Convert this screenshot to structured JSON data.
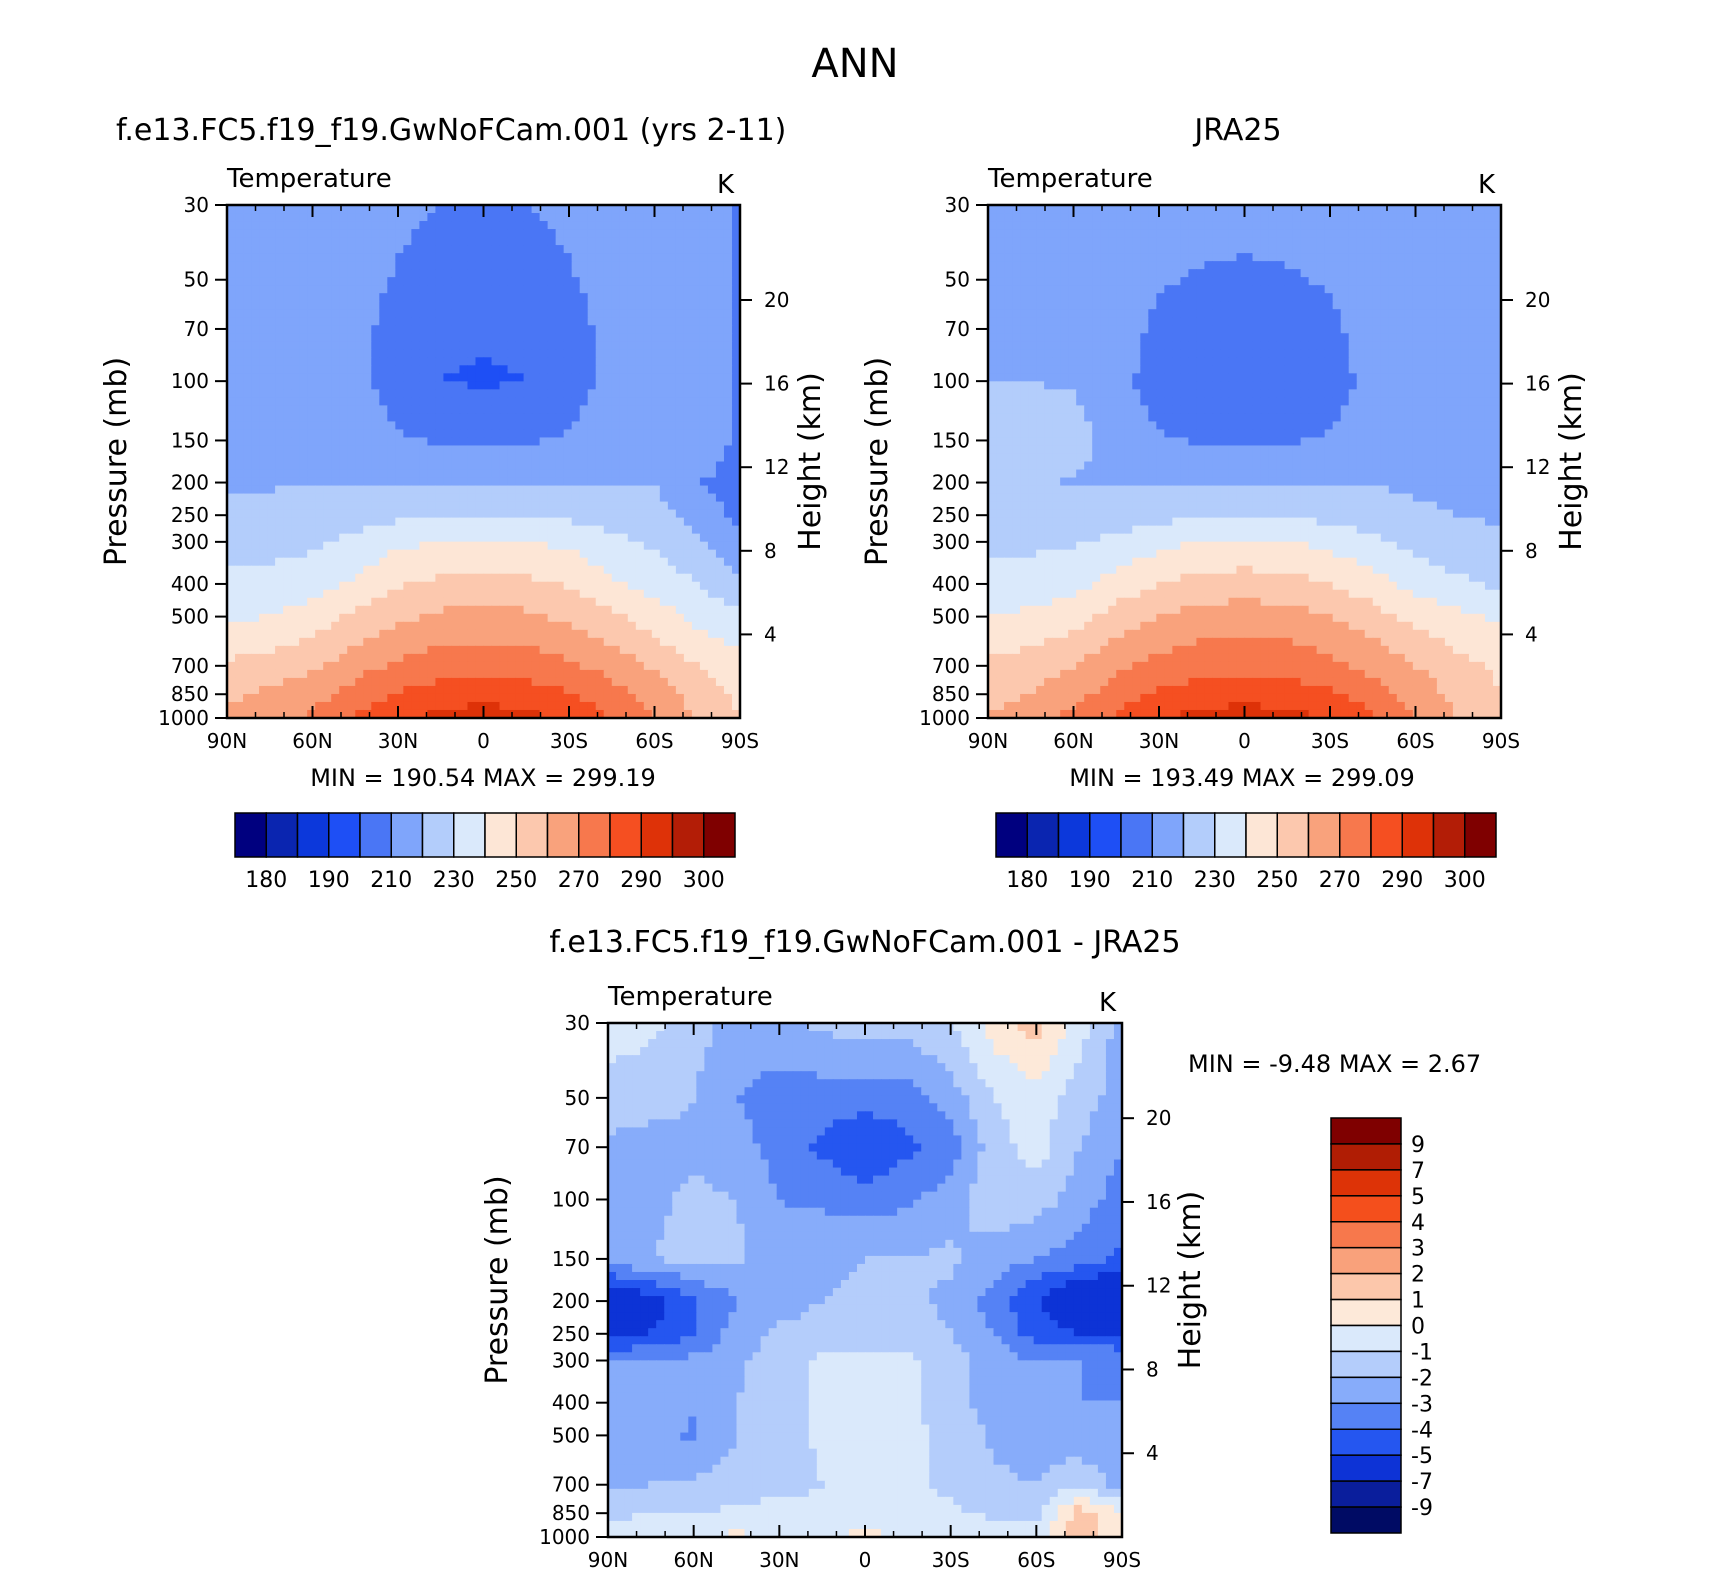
{
  "figure": {
    "season": "ANN"
  },
  "colors": {
    "abs_palette": [
      "#00007f",
      "#0a25b0",
      "#0c38db",
      "#1e4ff5",
      "#4a76f5",
      "#7fa5fb",
      "#b3cdfb",
      "#dae9fb",
      "#fde6d6",
      "#fcc8ae",
      "#f9a27c",
      "#f7784d",
      "#f54f21",
      "#de3208",
      "#b31d06",
      "#7f0000"
    ],
    "diff_palette": [
      "#000b64",
      "#0a1e9c",
      "#0d33d6",
      "#2556f0",
      "#5582f5",
      "#87acfa",
      "#b4cdfb",
      "#dae9fb",
      "#fde9d9",
      "#fcc7ab",
      "#f9a17b",
      "#f7784c",
      "#f44f1c",
      "#dd3307",
      "#b01d04",
      "#7f0000"
    ]
  },
  "panels": {
    "model": {
      "title": "f.e13.FC5.f19_f19.GwNoFCam.001 (yrs 2-11)",
      "variable": "Temperature",
      "units": "K",
      "ylabel": "Pressure (mb)",
      "y2label": "Height (km)",
      "min_label": "MIN = 190.54 MAX = 299.19"
    },
    "obs": {
      "title": "JRA25",
      "variable": "Temperature",
      "units": "K",
      "ylabel": "Pressure (mb)",
      "y2label": "Height (km)",
      "min_label": "MIN = 193.49 MAX = 299.09"
    },
    "diff": {
      "title": "f.e13.FC5.f19_f19.GwNoFCam.001 - JRA25",
      "variable": "Temperature",
      "units": "K",
      "ylabel": "Pressure (mb)",
      "y2label": "Height (km)",
      "min_label": "MIN = -9.48 MAX = 2.67"
    }
  },
  "chart_data": [
    {
      "type": "heatmap",
      "panel": "model",
      "title": "f.e13.FC5.f19_f19.GwNoFCam.001 (yrs 2-11)",
      "subtitle": "Temperature",
      "units": "K",
      "xlabel": "",
      "ylabel": "Pressure (mb)",
      "y2label": "Height (km)",
      "x": [
        90,
        75,
        60,
        45,
        30,
        15,
        0,
        -15,
        -30,
        -45,
        -60,
        -75,
        -90
      ],
      "x_tick_values": [
        90,
        60,
        30,
        0,
        -30,
        -60,
        -90
      ],
      "x_tick_labels": [
        "90N",
        "60N",
        "30N",
        "0",
        "30S",
        "60S",
        "90S"
      ],
      "pressure_levels": [
        30,
        50,
        70,
        100,
        150,
        200,
        250,
        300,
        400,
        500,
        700,
        850,
        1000
      ],
      "y_tick_labels": [
        "30",
        "50",
        "70",
        "100",
        "150",
        "200",
        "250",
        "300",
        "400",
        "500",
        "700",
        "850",
        "1000"
      ],
      "y2_ticks": [
        4,
        8,
        12,
        16,
        20
      ],
      "y_scale": "log",
      "ylim": [
        1000,
        30
      ],
      "values": [
        [
          218,
          218,
          218,
          215,
          212,
          210,
          210,
          210,
          212,
          215,
          218,
          218,
          208
        ],
        [
          218,
          218,
          218,
          214,
          209,
          206,
          205,
          206,
          209,
          214,
          218,
          218,
          208
        ],
        [
          218,
          218,
          218,
          213,
          206,
          202,
          201,
          202,
          206,
          213,
          218,
          218,
          208
        ],
        [
          218,
          218,
          218,
          213,
          205,
          200,
          199,
          200,
          205,
          213,
          218,
          218,
          208
        ],
        [
          219,
          219,
          219,
          217,
          211,
          209,
          208,
          209,
          211,
          217,
          219,
          218,
          207
        ],
        [
          219,
          219,
          220,
          220,
          220,
          220,
          220,
          220,
          220,
          220,
          220,
          210,
          207
        ],
        [
          222,
          223,
          224,
          226,
          228,
          229,
          229,
          229,
          228,
          226,
          224,
          216,
          207
        ],
        [
          226,
          227,
          228,
          232,
          238,
          240,
          240,
          240,
          238,
          232,
          228,
          222,
          211
        ],
        [
          232,
          233,
          236,
          242,
          249,
          252,
          253,
          252,
          249,
          242,
          236,
          230,
          222
        ],
        [
          238,
          240,
          244,
          252,
          258,
          262,
          263,
          262,
          258,
          252,
          245,
          237,
          232
        ],
        [
          252,
          254,
          258,
          266,
          272,
          275,
          276,
          275,
          272,
          266,
          258,
          250,
          244
        ],
        [
          258,
          262,
          266,
          274,
          281,
          285,
          286,
          285,
          281,
          274,
          266,
          256,
          248
        ],
        [
          262,
          266,
          272,
          281,
          288,
          293,
          295,
          293,
          288,
          280,
          270,
          258,
          250
        ]
      ],
      "levels": [
        180,
        185,
        190,
        200,
        210,
        220,
        230,
        240,
        250,
        260,
        270,
        280,
        290,
        295,
        300
      ],
      "colorbar_labels": [
        "180",
        "190",
        "210",
        "230",
        "250",
        "270",
        "290",
        "300"
      ],
      "min": 190.54,
      "max": 299.19
    },
    {
      "type": "heatmap",
      "panel": "obs",
      "title": "JRA25",
      "subtitle": "Temperature",
      "units": "K",
      "xlabel": "",
      "ylabel": "Pressure (mb)",
      "y2label": "Height (km)",
      "x": [
        90,
        75,
        60,
        45,
        30,
        15,
        0,
        -15,
        -30,
        -45,
        -60,
        -75,
        -90
      ],
      "x_tick_values": [
        90,
        60,
        30,
        0,
        -30,
        -60,
        -90
      ],
      "x_tick_labels": [
        "90N",
        "60N",
        "30N",
        "0",
        "30S",
        "60S",
        "90S"
      ],
      "pressure_levels": [
        30,
        50,
        70,
        100,
        150,
        200,
        250,
        300,
        400,
        500,
        700,
        850,
        1000
      ],
      "y_tick_labels": [
        "30",
        "50",
        "70",
        "100",
        "150",
        "200",
        "250",
        "300",
        "400",
        "500",
        "700",
        "850",
        "1000"
      ],
      "y2_ticks": [
        4,
        8,
        12,
        16,
        20
      ],
      "y_scale": "log",
      "ylim": [
        1000,
        30
      ],
      "values": [
        [
          219,
          219,
          219,
          217,
          215,
          214,
          214,
          214,
          215,
          217,
          219,
          219,
          210
        ],
        [
          219,
          219,
          219,
          215,
          211,
          209,
          208,
          209,
          211,
          215,
          219,
          219,
          210
        ],
        [
          219,
          219,
          219,
          214,
          208,
          205,
          204,
          205,
          208,
          214,
          219,
          219,
          211
        ],
        [
          220,
          220,
          219,
          213,
          206,
          203,
          202,
          203,
          206,
          213,
          219,
          219,
          213
        ],
        [
          222,
          224,
          224,
          216,
          211,
          209,
          209,
          209,
          211,
          216,
          219,
          219,
          216
        ],
        [
          224,
          222,
          219,
          219,
          219,
          219,
          219,
          219,
          219,
          219,
          219,
          218,
          218
        ],
        [
          225,
          224,
          224,
          225,
          227,
          228,
          228,
          228,
          227,
          225,
          221,
          220,
          219
        ],
        [
          228,
          228,
          229,
          232,
          237,
          240,
          241,
          240,
          237,
          232,
          226,
          223,
          221
        ],
        [
          233,
          234,
          237,
          244,
          250,
          254,
          255,
          254,
          250,
          244,
          237,
          232,
          228
        ],
        [
          240,
          242,
          246,
          254,
          260,
          264,
          265,
          264,
          260,
          254,
          247,
          242,
          238
        ],
        [
          252,
          255,
          260,
          268,
          273,
          276,
          277,
          276,
          273,
          267,
          260,
          253,
          248
        ],
        [
          256,
          260,
          266,
          275,
          282,
          285,
          286,
          285,
          282,
          275,
          266,
          257,
          250
        ],
        [
          261,
          266,
          273,
          282,
          289,
          293,
          295,
          293,
          289,
          281,
          271,
          260,
          252
        ]
      ],
      "levels": [
        180,
        185,
        190,
        200,
        210,
        220,
        230,
        240,
        250,
        260,
        270,
        280,
        290,
        295,
        300
      ],
      "colorbar_labels": [
        "180",
        "190",
        "210",
        "230",
        "250",
        "270",
        "290",
        "300"
      ],
      "min": 193.49,
      "max": 299.09
    },
    {
      "type": "heatmap",
      "panel": "diff",
      "title": "f.e13.FC5.f19_f19.GwNoFCam.001 - JRA25",
      "subtitle": "Temperature",
      "units": "K",
      "xlabel": "",
      "ylabel": "Pressure (mb)",
      "y2label": "Height (km)",
      "x": [
        90,
        75,
        60,
        45,
        30,
        15,
        0,
        -15,
        -30,
        -45,
        -60,
        -75,
        -90
      ],
      "x_tick_values": [
        90,
        60,
        30,
        0,
        -30,
        -60,
        -90
      ],
      "x_tick_labels": [
        "90N",
        "60N",
        "30N",
        "0",
        "30S",
        "60S",
        "90S"
      ],
      "pressure_levels": [
        30,
        50,
        70,
        100,
        150,
        200,
        250,
        300,
        400,
        500,
        700,
        850,
        1000
      ],
      "y_tick_labels": [
        "30",
        "50",
        "70",
        "100",
        "150",
        "200",
        "250",
        "300",
        "400",
        "500",
        "700",
        "850",
        "1000"
      ],
      "y2_ticks": [
        4,
        8,
        12,
        16,
        20
      ],
      "y_scale": "log",
      "ylim": [
        1000,
        30
      ],
      "values": [
        [
          -0.5,
          -0.8,
          -1.5,
          -2.5,
          -2.2,
          -1.8,
          -1.5,
          -1.5,
          -1.0,
          0.5,
          1.5,
          -0.5,
          -2.5
        ],
        [
          -1.5,
          -1.5,
          -2.0,
          -3.0,
          -3.5,
          -3.5,
          -3.5,
          -3.5,
          -2.5,
          -1.0,
          -0.5,
          -1.5,
          -2.5
        ],
        [
          -2.2,
          -2.5,
          -2.2,
          -2.5,
          -3.5,
          -4.2,
          -5.0,
          -4.2,
          -3.5,
          -1.5,
          -0.5,
          -2.0,
          -3.0
        ],
        [
          -2.5,
          -2.2,
          -1.8,
          -2.0,
          -3.0,
          -3.2,
          -3.5,
          -3.2,
          -2.5,
          -1.2,
          -1.5,
          -2.5,
          -3.5
        ],
        [
          -2.5,
          -2.0,
          -1.8,
          -1.8,
          -2.5,
          -2.2,
          -2.0,
          -2.0,
          -1.8,
          -2.5,
          -3.0,
          -3.5,
          -4.2
        ],
        [
          -6.5,
          -5.5,
          -4.2,
          -3.0,
          -2.5,
          -2.0,
          -1.8,
          -1.8,
          -2.2,
          -3.5,
          -5.0,
          -6.5,
          -7.0
        ],
        [
          -5.5,
          -5.0,
          -4.0,
          -2.5,
          -1.8,
          -1.5,
          -1.5,
          -1.5,
          -2.0,
          -3.0,
          -4.5,
          -5.0,
          -5.0
        ],
        [
          -3.0,
          -3.0,
          -2.8,
          -2.2,
          -1.5,
          -0.8,
          -0.8,
          -0.8,
          -1.5,
          -2.5,
          -3.0,
          -3.0,
          -3.2
        ],
        [
          -2.5,
          -2.5,
          -2.8,
          -2.0,
          -1.5,
          -0.8,
          -0.5,
          -0.8,
          -1.5,
          -2.5,
          -2.8,
          -3.0,
          -3.0
        ],
        [
          -2.5,
          -2.5,
          -3.2,
          -2.0,
          -1.5,
          -0.8,
          -0.5,
          -0.8,
          -1.2,
          -2.2,
          -2.5,
          -2.8,
          -3.0
        ],
        [
          -2.2,
          -2.0,
          -1.8,
          -1.5,
          -1.5,
          -1.0,
          -0.8,
          -0.8,
          -1.2,
          -1.8,
          -2.0,
          -1.0,
          -2.5
        ],
        [
          -1.2,
          -1.0,
          -1.0,
          -0.8,
          -0.5,
          -0.5,
          -0.5,
          -0.8,
          -0.8,
          -1.2,
          -1.5,
          1.5,
          0.0
        ],
        [
          -0.5,
          -0.5,
          -0.2,
          0.3,
          -0.5,
          -0.2,
          0.3,
          -0.2,
          -0.5,
          -0.2,
          -0.5,
          2.0,
          0.0
        ]
      ],
      "levels": [
        -9,
        -7,
        -5,
        -4,
        -3,
        -2,
        -1,
        0,
        1,
        2,
        3,
        4,
        5,
        7,
        9
      ],
      "colorbar_labels": [
        "9",
        "7",
        "5",
        "4",
        "3",
        "2",
        "1",
        "0",
        "-1",
        "-2",
        "-3",
        "-4",
        "-5",
        "-7",
        "-9"
      ],
      "min": -9.48,
      "max": 2.67
    }
  ]
}
